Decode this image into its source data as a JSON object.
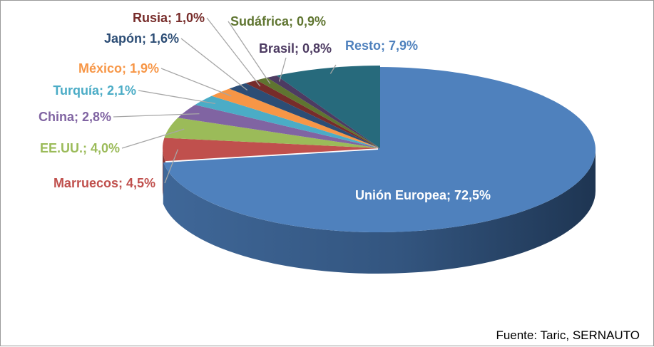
{
  "chart_data": {
    "type": "pie",
    "style": "3d-exploded-first",
    "title": "",
    "unit": "%",
    "slices": [
      {
        "name": "Unión Europea",
        "value": 72.5,
        "label": "Unión Europea; 72,5%",
        "color": "#4F81BD",
        "label_color": "#FFFFFF"
      },
      {
        "name": "Marruecos",
        "value": 4.5,
        "label": "Marruecos; 4,5%",
        "color": "#C0504D",
        "label_color": "#C0504D"
      },
      {
        "name": "EE.UU.",
        "value": 4.0,
        "label": "EE.UU.; 4,0%",
        "color": "#9BBB59",
        "label_color": "#9BBB59"
      },
      {
        "name": "China",
        "value": 2.8,
        "label": "China; 2,8%",
        "color": "#8064A2",
        "label_color": "#8064A2"
      },
      {
        "name": "Turquía",
        "value": 2.1,
        "label": "Turquía; 2,1%",
        "color": "#4BACC6",
        "label_color": "#4BACC6"
      },
      {
        "name": "México",
        "value": 1.9,
        "label": "México; 1,9%",
        "color": "#F79646",
        "label_color": "#F79646"
      },
      {
        "name": "Japón",
        "value": 1.6,
        "label": "Japón; 1,6%",
        "color": "#2C4D75",
        "label_color": "#2C4D75"
      },
      {
        "name": "Rusia",
        "value": 1.0,
        "label": "Rusia; 1,0%",
        "color": "#772C2A",
        "label_color": "#772C2A"
      },
      {
        "name": "Sudáfrica",
        "value": 0.9,
        "label": "Sudáfrica; 0,9%",
        "color": "#5F7530",
        "label_color": "#5F7530"
      },
      {
        "name": "Brasil",
        "value": 0.8,
        "label": "Brasil; 0,8%",
        "color": "#4D3B62",
        "label_color": "#4D3B62"
      },
      {
        "name": "Resto",
        "value": 7.9,
        "label": "Resto; 7,9%",
        "color": "#276A7C",
        "label_color": "#4F81BD"
      }
    ],
    "legend": "none",
    "source": "Fuente: Taric, SERNAUTO"
  }
}
